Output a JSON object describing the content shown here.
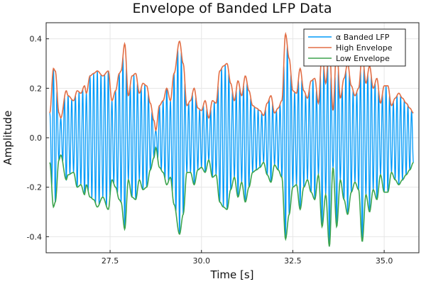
{
  "chart_data": {
    "type": "line",
    "title": "Envelope of Banded LFP Data",
    "xlabel": "Time [s]",
    "ylabel": "Amplitude",
    "xlim": [
      25.75,
      35.95
    ],
    "ylim": [
      -0.465,
      0.465
    ],
    "x_ticks": [
      27.5,
      30.0,
      32.5,
      35.0
    ],
    "x_tick_labels": [
      "27.5",
      "30.0",
      "32.5",
      "35.0"
    ],
    "y_ticks": [
      -0.4,
      -0.2,
      0.0,
      0.2,
      0.4
    ],
    "y_tick_labels": [
      "-0.4",
      "-0.2",
      "0.0",
      "0.2",
      "0.4"
    ],
    "grid": true,
    "legend_position": "top-right",
    "x_start": 25.85,
    "x_end": 35.8,
    "alpha_frequency_hz": 10,
    "series": [
      {
        "name": "α Banded LFP",
        "color": "#009af9",
        "kind": "oscillation bounded by envelopes"
      },
      {
        "name": "High Envelope",
        "color": "#e26f46",
        "x": [
          25.85,
          25.95,
          26.0,
          26.1,
          26.15,
          26.3,
          26.35,
          26.5,
          26.6,
          26.7,
          26.8,
          26.85,
          26.95,
          27.05,
          27.15,
          27.3,
          27.45,
          27.55,
          27.65,
          27.75,
          27.8,
          27.9,
          28.0,
          28.1,
          28.2,
          28.3,
          28.4,
          28.5,
          28.6,
          28.7,
          28.75,
          28.85,
          28.95,
          29.05,
          29.15,
          29.25,
          29.4,
          29.5,
          29.6,
          29.7,
          29.8,
          29.9,
          30.0,
          30.1,
          30.2,
          30.3,
          30.4,
          30.5,
          30.6,
          30.7,
          30.8,
          30.9,
          31.0,
          31.1,
          31.2,
          31.3,
          31.4,
          31.5,
          31.6,
          31.7,
          31.8,
          31.9,
          32.0,
          32.1,
          32.2,
          32.3,
          32.4,
          32.5,
          32.6,
          32.7,
          32.8,
          32.9,
          33.0,
          33.1,
          33.2,
          33.3,
          33.4,
          33.5,
          33.6,
          33.7,
          33.8,
          33.9,
          34.0,
          34.1,
          34.2,
          34.3,
          34.4,
          34.5,
          34.6,
          34.7,
          34.8,
          34.9,
          35.0,
          35.1,
          35.2,
          35.3,
          35.4,
          35.5,
          35.6,
          35.7,
          35.8
        ],
        "values": [
          0.1,
          0.28,
          0.27,
          0.1,
          0.08,
          0.19,
          0.17,
          0.15,
          0.19,
          0.18,
          0.21,
          0.18,
          0.25,
          0.26,
          0.27,
          0.25,
          0.27,
          0.15,
          0.19,
          0.26,
          0.27,
          0.38,
          0.17,
          0.25,
          0.26,
          0.18,
          0.22,
          0.21,
          0.14,
          0.07,
          0.03,
          0.13,
          0.15,
          0.2,
          0.15,
          0.26,
          0.39,
          0.3,
          0.13,
          0.15,
          0.2,
          0.12,
          0.11,
          0.15,
          0.08,
          0.15,
          0.14,
          0.27,
          0.29,
          0.3,
          0.22,
          0.15,
          0.23,
          0.17,
          0.25,
          0.19,
          0.13,
          0.12,
          0.11,
          0.09,
          0.14,
          0.17,
          0.1,
          0.12,
          0.15,
          0.42,
          0.32,
          0.19,
          0.18,
          0.28,
          0.19,
          0.16,
          0.23,
          0.24,
          0.14,
          0.35,
          0.22,
          0.37,
          0.11,
          0.37,
          0.16,
          0.24,
          0.3,
          0.21,
          0.17,
          0.2,
          0.34,
          0.22,
          0.29,
          0.2,
          0.24,
          0.14,
          0.21,
          0.21,
          0.13,
          0.16,
          0.18,
          0.16,
          0.14,
          0.12,
          0.1
        ]
      },
      {
        "name": "Low Envelope",
        "color": "#3da44d",
        "x": [
          25.85,
          25.95,
          26.0,
          26.1,
          26.15,
          26.3,
          26.35,
          26.5,
          26.6,
          26.7,
          26.8,
          26.85,
          26.95,
          27.05,
          27.15,
          27.3,
          27.45,
          27.55,
          27.65,
          27.75,
          27.8,
          27.9,
          28.0,
          28.1,
          28.2,
          28.3,
          28.4,
          28.5,
          28.6,
          28.7,
          28.75,
          28.85,
          28.95,
          29.05,
          29.15,
          29.25,
          29.4,
          29.5,
          29.6,
          29.7,
          29.8,
          29.9,
          30.0,
          30.1,
          30.2,
          30.3,
          30.4,
          30.5,
          30.6,
          30.7,
          30.8,
          30.9,
          31.0,
          31.1,
          31.2,
          31.3,
          31.4,
          31.5,
          31.6,
          31.7,
          31.8,
          31.9,
          32.0,
          32.1,
          32.2,
          32.3,
          32.4,
          32.5,
          32.6,
          32.7,
          32.8,
          32.9,
          33.0,
          33.1,
          33.2,
          33.3,
          33.4,
          33.5,
          33.6,
          33.7,
          33.8,
          33.9,
          34.0,
          34.1,
          34.2,
          34.3,
          34.4,
          34.5,
          34.6,
          34.7,
          34.8,
          34.9,
          35.0,
          35.1,
          35.2,
          35.3,
          35.4,
          35.5,
          35.6,
          35.7,
          35.8
        ],
        "values": [
          -0.1,
          -0.28,
          -0.26,
          -0.09,
          -0.07,
          -0.17,
          -0.15,
          -0.14,
          -0.2,
          -0.19,
          -0.23,
          -0.19,
          -0.24,
          -0.25,
          -0.28,
          -0.24,
          -0.29,
          -0.17,
          -0.2,
          -0.25,
          -0.26,
          -0.37,
          -0.17,
          -0.24,
          -0.25,
          -0.17,
          -0.21,
          -0.2,
          -0.13,
          -0.08,
          -0.04,
          -0.12,
          -0.14,
          -0.19,
          -0.16,
          -0.27,
          -0.39,
          -0.31,
          -0.14,
          -0.14,
          -0.19,
          -0.13,
          -0.12,
          -0.14,
          -0.09,
          -0.16,
          -0.15,
          -0.26,
          -0.28,
          -0.29,
          -0.21,
          -0.16,
          -0.24,
          -0.18,
          -0.26,
          -0.2,
          -0.14,
          -0.13,
          -0.12,
          -0.1,
          -0.15,
          -0.18,
          -0.11,
          -0.13,
          -0.16,
          -0.41,
          -0.31,
          -0.2,
          -0.19,
          -0.29,
          -0.2,
          -0.17,
          -0.22,
          -0.25,
          -0.15,
          -0.36,
          -0.23,
          -0.44,
          -0.12,
          -0.36,
          -0.17,
          -0.25,
          -0.31,
          -0.22,
          -0.18,
          -0.21,
          -0.42,
          -0.23,
          -0.3,
          -0.21,
          -0.25,
          -0.15,
          -0.22,
          -0.22,
          -0.14,
          -0.17,
          -0.19,
          -0.17,
          -0.15,
          -0.13,
          -0.1
        ]
      }
    ]
  }
}
